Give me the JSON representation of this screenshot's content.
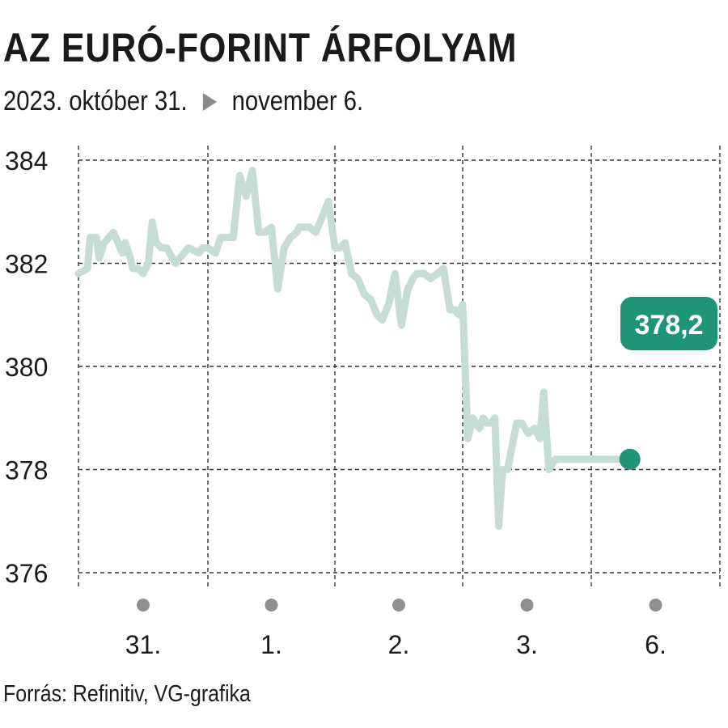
{
  "header": {
    "title": "AZ EURÓ-FORINT ÁRFOLYAM",
    "date_from": "2023. október 31.",
    "date_to": "november 6."
  },
  "footer": {
    "source": "Forrás: Refinitiv, VG-grafika"
  },
  "colors": {
    "line": "#c5ddd4",
    "accent": "#1f9479",
    "day_dot": "#8f8f8f",
    "grid": "#333333"
  },
  "chart_data": {
    "type": "line",
    "title": "AZ EURÓ-FORINT ÁRFOLYAM",
    "subtitle": "2023. október 31. ► november 6.",
    "xlabel": "",
    "ylabel": "",
    "ylim": [
      376,
      384
    ],
    "yticks": [
      384,
      382,
      380,
      378,
      376
    ],
    "ytick_labels": [
      "384",
      "382",
      "380",
      "378",
      "376"
    ],
    "days": [
      {
        "label": "31.",
        "start": 0.0,
        "end": 1.0
      },
      {
        "label": "1.",
        "start": 1.0,
        "end": 2.0
      },
      {
        "label": "2.",
        "start": 2.0,
        "end": 3.0
      },
      {
        "label": "3.",
        "start": 3.0,
        "end": 4.0
      },
      {
        "label": "6.",
        "start": 4.0,
        "end": 5.0
      }
    ],
    "grid": true,
    "series": [
      {
        "x": [
          0.0,
          0.07,
          0.09,
          0.14,
          0.16,
          0.2,
          0.27,
          0.34,
          0.36,
          0.39,
          0.42,
          0.46,
          0.5,
          0.54,
          0.57,
          0.6,
          0.64,
          0.68,
          0.75,
          0.85,
          0.93,
          0.96,
          1.0,
          1.06,
          1.1,
          1.2,
          1.25,
          1.3,
          1.35,
          1.4,
          1.45,
          1.5,
          1.55,
          1.6,
          1.65,
          1.7,
          1.72,
          1.75,
          1.8,
          1.85,
          1.9,
          1.95,
          2.0,
          2.04,
          2.08,
          2.13,
          2.18,
          2.23,
          2.28,
          2.33,
          2.37,
          2.42,
          2.47,
          2.52,
          2.57,
          2.61,
          2.64,
          2.7,
          2.75,
          2.8,
          2.85,
          2.9,
          2.94,
          2.97,
          3.0,
          3.04,
          3.08,
          3.13,
          3.16,
          3.19,
          3.22,
          3.25,
          3.28,
          3.31,
          3.35,
          3.38,
          3.42,
          3.46,
          3.51,
          3.56,
          3.6,
          3.63,
          3.67,
          3.72,
          3.76,
          3.81,
          3.85,
          3.9,
          3.93,
          3.97,
          4.01,
          4.05,
          4.1,
          4.13,
          4.17,
          4.22,
          4.26,
          4.3
        ],
        "y": [
          381.8,
          381.9,
          382.5,
          382.5,
          382.1,
          382.4,
          382.6,
          382.2,
          382.4,
          382.2,
          381.9,
          381.9,
          381.8,
          382.0,
          382.8,
          382.4,
          382.3,
          382.3,
          382.0,
          382.3,
          382.2,
          382.3,
          382.3,
          382.2,
          382.5,
          382.5,
          383.7,
          383.3,
          383.8,
          382.6,
          382.6,
          382.7,
          381.5,
          382.3,
          382.5,
          382.6,
          382.7,
          382.7,
          382.7,
          382.6,
          382.9,
          383.2,
          382.3,
          382.3,
          382.4,
          381.8,
          381.7,
          381.4,
          381.3,
          381.0,
          380.9,
          381.2,
          381.8,
          380.8,
          381.5,
          381.7,
          381.8,
          381.8,
          381.7,
          381.8,
          381.9,
          381.1,
          381.1,
          381.0,
          381.2,
          378.6,
          379.0,
          378.8,
          379.0,
          378.9,
          378.9,
          379.0,
          376.9,
          378.0,
          378.0,
          378.4,
          378.9,
          378.9,
          378.7,
          378.8,
          378.6,
          379.5,
          378.0,
          378.2,
          378.2,
          378.2,
          378.2,
          378.2,
          378.2,
          378.2,
          378.2,
          378.2,
          378.2,
          378.2,
          378.2,
          378.2,
          378.2,
          378.2
        ]
      }
    ],
    "last_value": 378.2,
    "last_value_label": "378,2"
  }
}
